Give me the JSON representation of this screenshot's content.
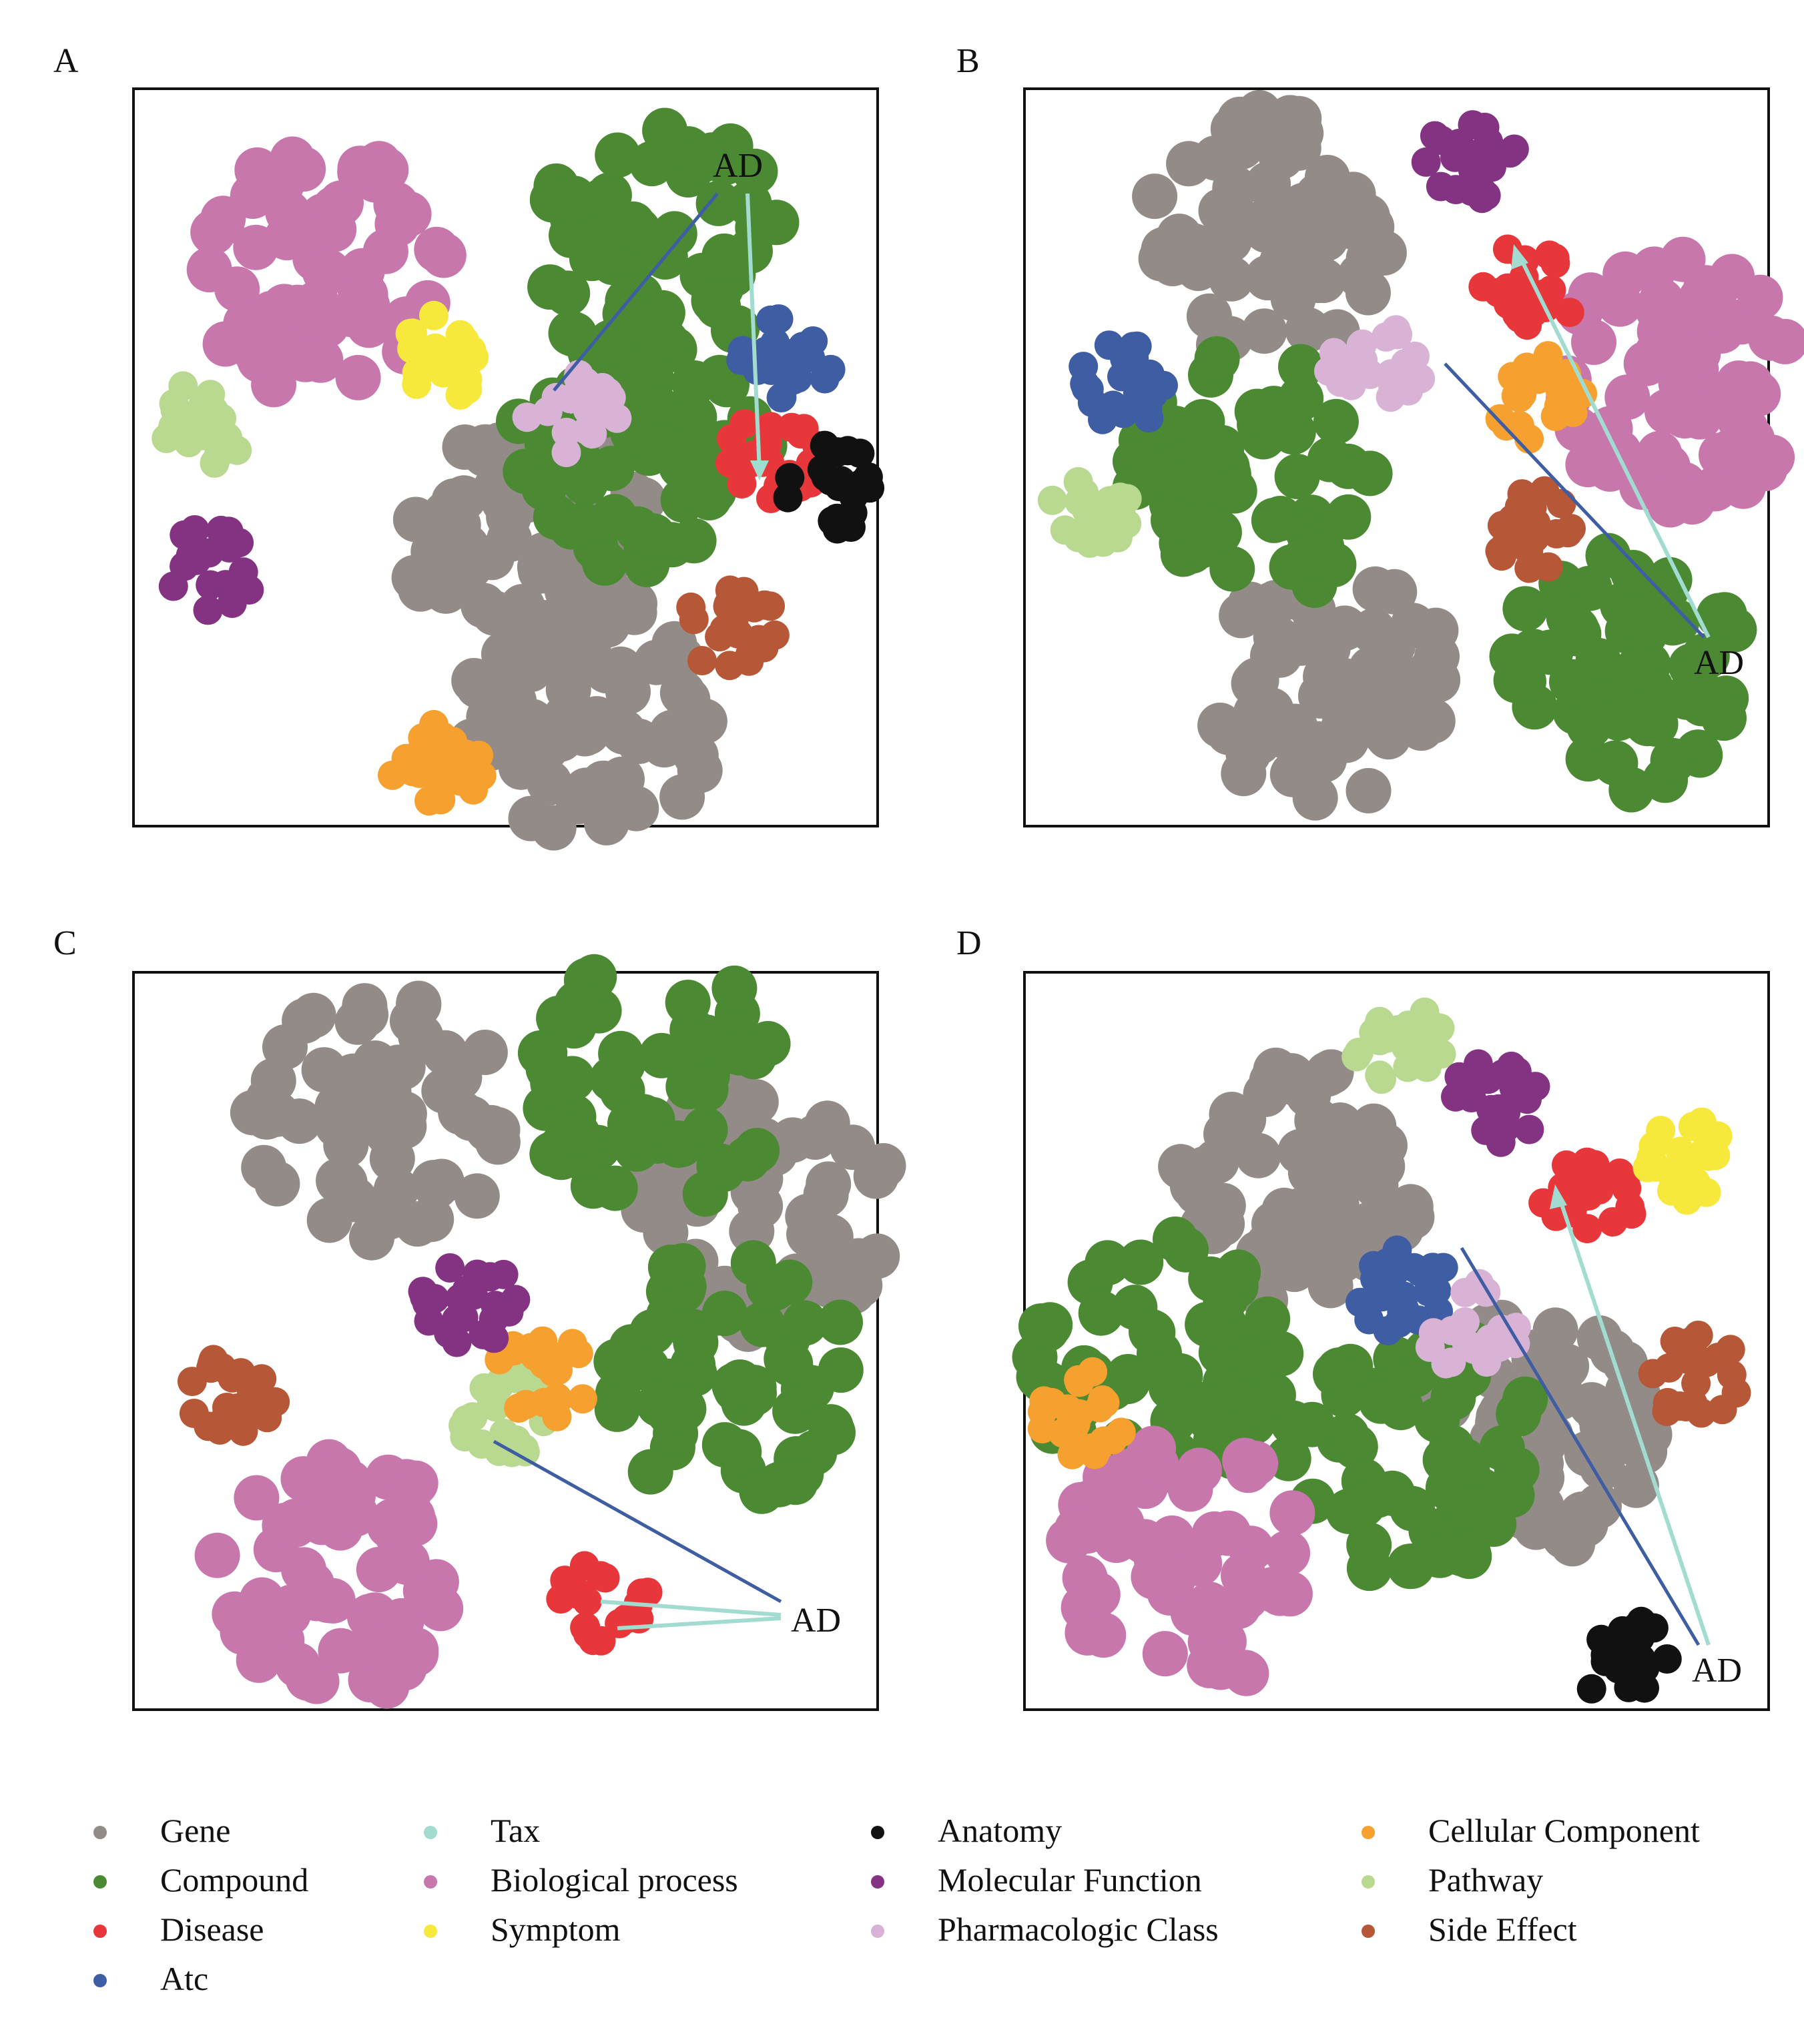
{
  "legend": [
    {
      "label": "Gene",
      "color": "#938b87"
    },
    {
      "label": "Compound",
      "color": "#4b8a33"
    },
    {
      "label": "Disease",
      "color": "#e8373a"
    },
    {
      "label": "Atc",
      "color": "#3f5da3"
    },
    {
      "label": "Tax",
      "color": "#a2dbd0"
    },
    {
      "label": "Biological process",
      "color": "#c877ad"
    },
    {
      "label": "Symptom",
      "color": "#f7e93c"
    },
    {
      "label": "Anatomy",
      "color": "#111111"
    },
    {
      "label": "Molecular Function",
      "color": "#843282"
    },
    {
      "label": "Pharmacologic Class",
      "color": "#d9b3d5"
    },
    {
      "label": "Cellular Component",
      "color": "#f6a030"
    },
    {
      "label": "Pathway",
      "color": "#b8d98f"
    },
    {
      "label": "Side Effect",
      "color": "#b65837"
    }
  ],
  "chart_data": [
    {
      "type": "scatter",
      "panel": "A",
      "annotation": "AD",
      "clusters": [
        {
          "category": "Gene",
          "x": 0.53,
          "y": 0.62
        },
        {
          "category": "Gene",
          "x": 0.62,
          "y": 0.85
        },
        {
          "category": "Compound",
          "x": 0.71,
          "y": 0.22
        },
        {
          "category": "Compound",
          "x": 0.68,
          "y": 0.48
        },
        {
          "category": "Biological process",
          "x": 0.25,
          "y": 0.25
        },
        {
          "category": "Pathway",
          "x": 0.1,
          "y": 0.45
        },
        {
          "category": "Molecular Function",
          "x": 0.11,
          "y": 0.65
        },
        {
          "category": "Cellular Component",
          "x": 0.41,
          "y": 0.92
        },
        {
          "category": "Atc",
          "x": 0.88,
          "y": 0.36
        },
        {
          "category": "Disease",
          "x": 0.86,
          "y": 0.5
        },
        {
          "category": "Anatomy",
          "x": 0.94,
          "y": 0.54
        },
        {
          "category": "Side Effect",
          "x": 0.8,
          "y": 0.73
        },
        {
          "category": "Pharmacologic Class",
          "x": 0.59,
          "y": 0.44
        },
        {
          "category": "Symptom",
          "x": 0.42,
          "y": 0.36
        }
      ]
    },
    {
      "type": "scatter",
      "panel": "B",
      "annotation": "AD",
      "clusters": [
        {
          "category": "Gene",
          "x": 0.33,
          "y": 0.2
        },
        {
          "category": "Gene",
          "x": 0.4,
          "y": 0.8
        },
        {
          "category": "Compound",
          "x": 0.3,
          "y": 0.53
        },
        {
          "category": "Compound",
          "x": 0.8,
          "y": 0.8
        },
        {
          "category": "Biological process",
          "x": 0.88,
          "y": 0.4
        },
        {
          "category": "Molecular Function",
          "x": 0.6,
          "y": 0.1
        },
        {
          "category": "Disease",
          "x": 0.68,
          "y": 0.27
        },
        {
          "category": "Atc",
          "x": 0.13,
          "y": 0.4
        },
        {
          "category": "Pathway",
          "x": 0.08,
          "y": 0.57
        },
        {
          "category": "Side Effect",
          "x": 0.68,
          "y": 0.6
        },
        {
          "category": "Cellular Component",
          "x": 0.69,
          "y": 0.42
        },
        {
          "category": "Pharmacologic Class",
          "x": 0.47,
          "y": 0.38
        }
      ]
    },
    {
      "type": "scatter",
      "panel": "C",
      "annotation": "AD",
      "clusters": [
        {
          "category": "Gene",
          "x": 0.33,
          "y": 0.2
        },
        {
          "category": "Gene",
          "x": 0.85,
          "y": 0.32
        },
        {
          "category": "Compound",
          "x": 0.7,
          "y": 0.15
        },
        {
          "category": "Compound",
          "x": 0.8,
          "y": 0.55
        },
        {
          "category": "Side Effect",
          "x": 0.13,
          "y": 0.58
        },
        {
          "category": "Biological process",
          "x": 0.28,
          "y": 0.82
        },
        {
          "category": "Pathway",
          "x": 0.5,
          "y": 0.6
        },
        {
          "category": "Cellular Component",
          "x": 0.55,
          "y": 0.55
        },
        {
          "category": "Molecular Function",
          "x": 0.45,
          "y": 0.45
        },
        {
          "category": "Disease",
          "x": 0.63,
          "y": 0.85
        }
      ]
    },
    {
      "type": "scatter",
      "panel": "D",
      "annotation": "AD",
      "clusters": [
        {
          "category": "Gene",
          "x": 0.36,
          "y": 0.28
        },
        {
          "category": "Gene",
          "x": 0.68,
          "y": 0.62
        },
        {
          "category": "Compound",
          "x": 0.52,
          "y": 0.65
        },
        {
          "category": "Compound",
          "x": 0.18,
          "y": 0.53
        },
        {
          "category": "Biological process",
          "x": 0.22,
          "y": 0.8
        },
        {
          "category": "Pathway",
          "x": 0.5,
          "y": 0.1
        },
        {
          "category": "Molecular Function",
          "x": 0.63,
          "y": 0.18
        },
        {
          "category": "Disease",
          "x": 0.76,
          "y": 0.3
        },
        {
          "category": "Symptom",
          "x": 0.88,
          "y": 0.25
        },
        {
          "category": "Side Effect",
          "x": 0.9,
          "y": 0.55
        },
        {
          "category": "Atc",
          "x": 0.51,
          "y": 0.43
        },
        {
          "category": "Cellular Component",
          "x": 0.08,
          "y": 0.6
        },
        {
          "category": "Anatomy",
          "x": 0.8,
          "y": 0.93
        },
        {
          "category": "Pharmacologic Class",
          "x": 0.6,
          "y": 0.48
        }
      ]
    }
  ]
}
